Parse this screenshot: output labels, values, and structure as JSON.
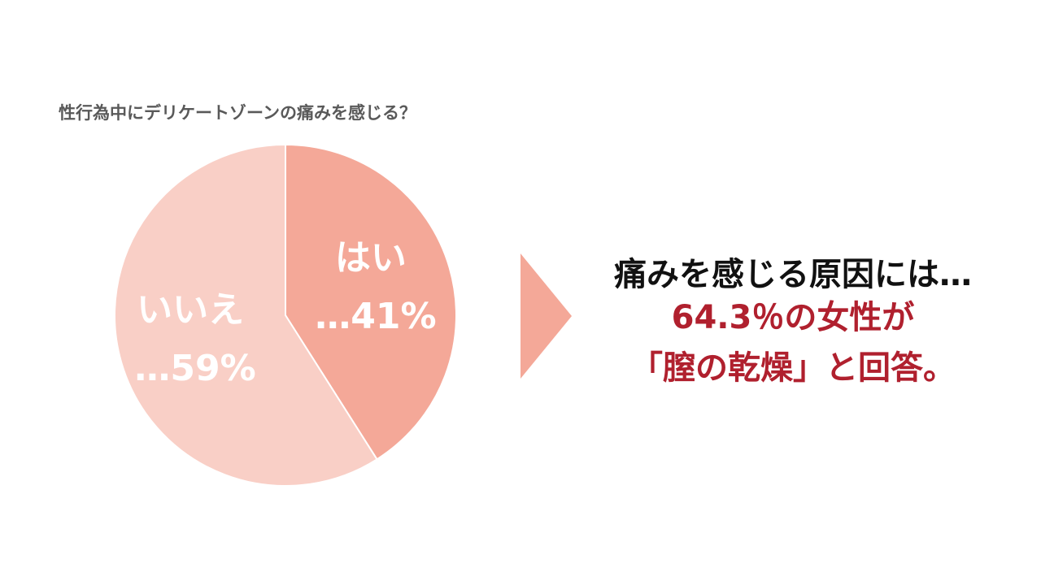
{
  "chart_data": {
    "type": "pie",
    "title": "性行為中にデリケートゾーンの痛みを感じる？",
    "categories": [
      "はい",
      "いいえ"
    ],
    "values": [
      41,
      59
    ],
    "value_labels": [
      "…41%",
      "…59%"
    ],
    "colors": [
      "#f4a898",
      "#f9cfc6"
    ],
    "annotations": [
      "痛みを感じる原因には…",
      "64.3％の女性が",
      "「膣の乾燥」と回答。"
    ]
  }
}
